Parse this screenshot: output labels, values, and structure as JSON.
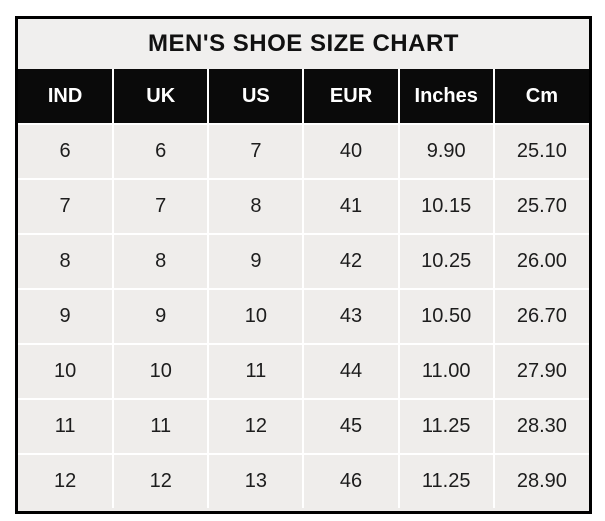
{
  "chart_data": {
    "type": "table",
    "title": "MEN'S SHOE SIZE CHART",
    "columns": [
      "IND",
      "UK",
      "US",
      "EUR",
      "Inches",
      "Cm"
    ],
    "rows": [
      [
        "6",
        "6",
        "7",
        "40",
        "9.90",
        "25.10"
      ],
      [
        "7",
        "7",
        "8",
        "41",
        "10.15",
        "25.70"
      ],
      [
        "8",
        "8",
        "9",
        "42",
        "10.25",
        "26.00"
      ],
      [
        "9",
        "9",
        "10",
        "43",
        "10.50",
        "26.70"
      ],
      [
        "10",
        "10",
        "11",
        "44",
        "11.00",
        "27.90"
      ],
      [
        "11",
        "11",
        "12",
        "45",
        "11.25",
        "28.30"
      ],
      [
        "12",
        "12",
        "13",
        "46",
        "11.25",
        "28.90"
      ]
    ],
    "layout": {
      "legend": "none",
      "grid": "white-gridlines"
    }
  },
  "colors": {
    "page_background": "#ffffff",
    "outer_border": "#000000",
    "title_background": "#f0efee",
    "header_background": "#0a0a0a",
    "header_text": "#ffffff",
    "cell_background": "#efedeb",
    "cell_text": "#1d1d1d",
    "gridline": "#ffffff"
  }
}
